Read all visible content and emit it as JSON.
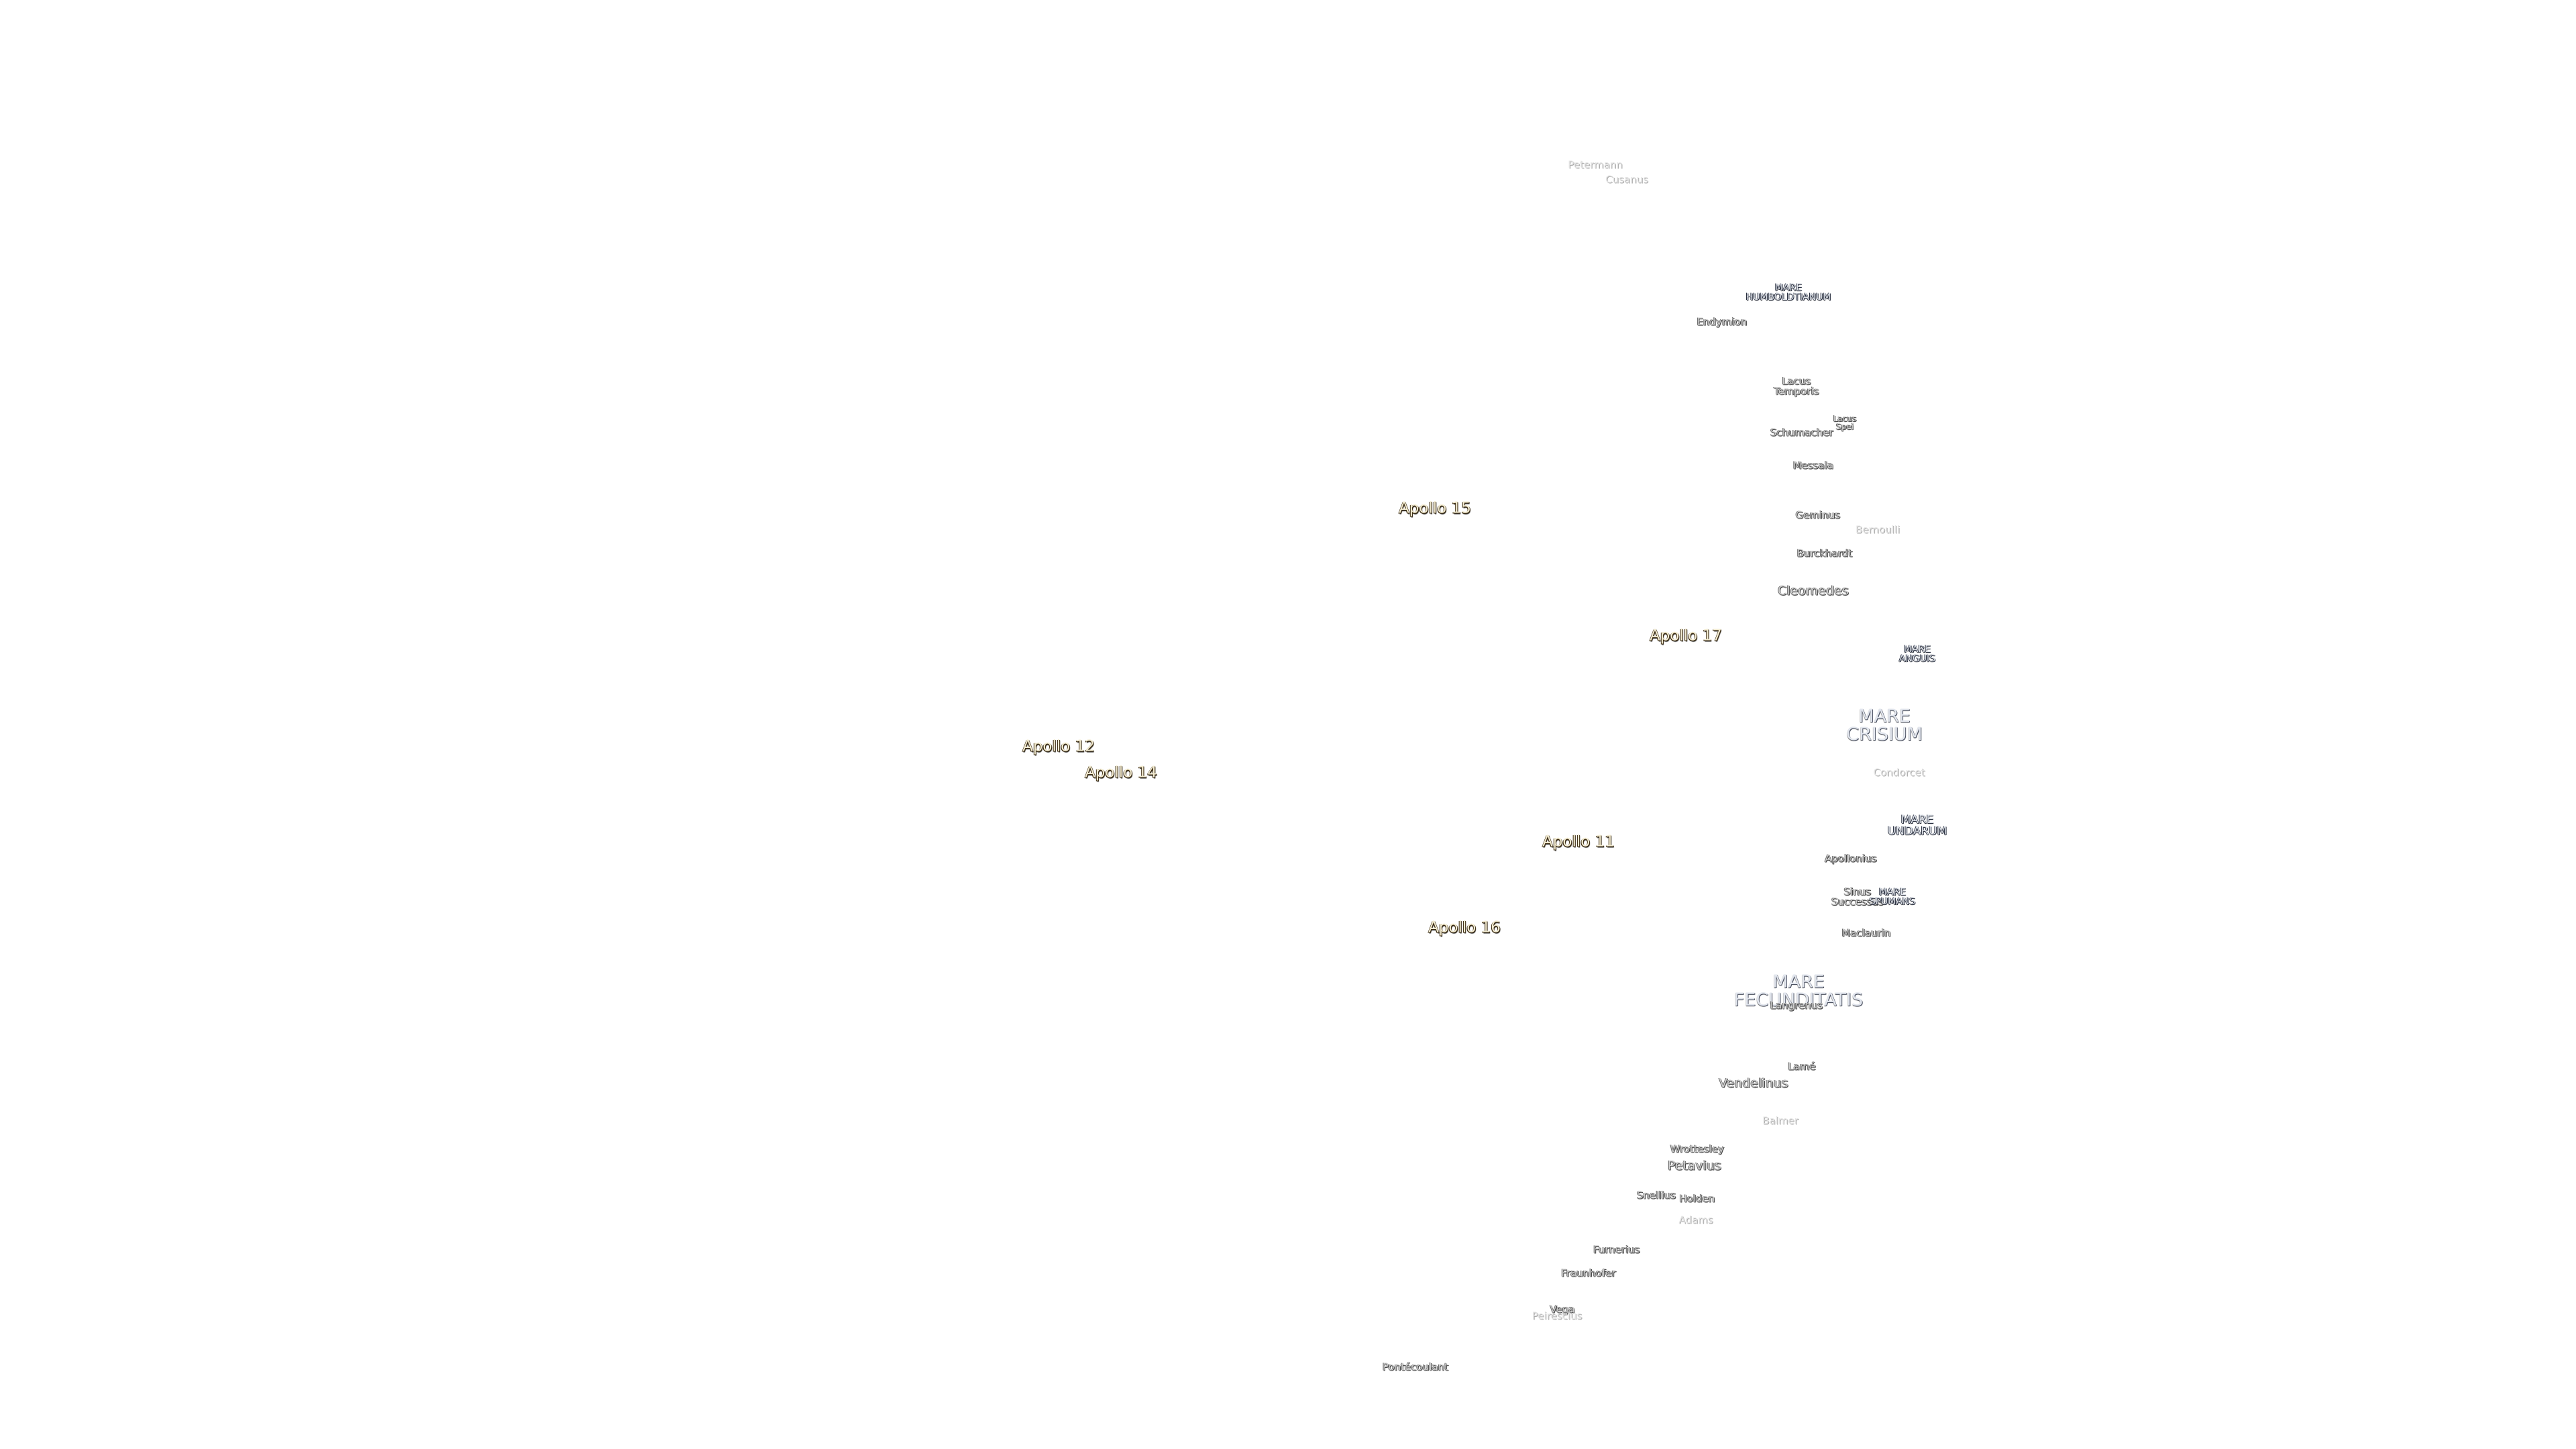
{
  "labels": [
    "Petermann",
    "Cusanus",
    "MARE\nHUMBOLDTIANUM",
    "Endymion",
    "Lacus\nTemporis",
    "Lacus\nSpei",
    "Schumacher",
    "Messala",
    "Apollo 15",
    "Geminus",
    "Bernoulli",
    "Burckhardt",
    "Cleomedes",
    "Apollo 17",
    "MARE\nANGUIS",
    "MARE\nCRISIUM",
    "Apollo 12",
    "Apollo 14",
    "Condorcet",
    "MARE\nUNDARUM",
    "Apollo 11",
    "Apollonius",
    "Sinus\nSuccessus",
    "MARE\nSPUMANS",
    "Apollo 16",
    "Maclaurin",
    "MARE\nFECUNDITATIS",
    "Langrenus",
    "Lamé",
    "Vendelinus",
    "Balmer",
    "Wrottesley",
    "Petavius",
    "Snellius",
    "Holden",
    "Adams",
    "Furnerius",
    "Fraunhofer",
    "Vega",
    "Peirescius",
    "Pontécoulant"
  ]
}
